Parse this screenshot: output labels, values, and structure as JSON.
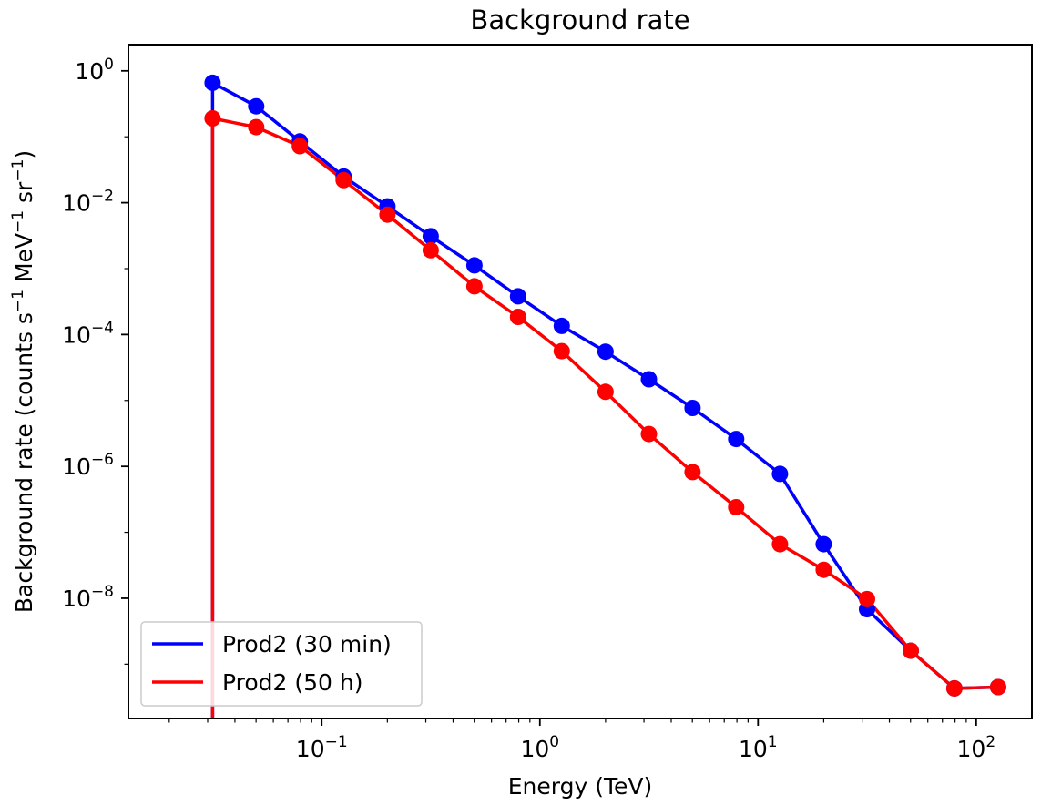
{
  "chart_data": {
    "type": "line",
    "title": "Background rate",
    "xlabel": "Energy (TeV)",
    "ylabel": {
      "text": "Background rate (counts s",
      "exp1": "−1",
      "mid": " MeV",
      "exp2": "−1",
      "mid2": " sr",
      "exp3": "−1",
      "end": ")"
    },
    "xscale": "log",
    "yscale": "log",
    "xlim": [
      0.013,
      180
    ],
    "ylim": [
      1.5e-10,
      2.5
    ],
    "x_ticks": [
      {
        "base": "10",
        "exp": "−1",
        "value": 0.1
      },
      {
        "base": "10",
        "exp": "0",
        "value": 1
      },
      {
        "base": "10",
        "exp": "1",
        "value": 10
      },
      {
        "base": "10",
        "exp": "2",
        "value": 100
      }
    ],
    "y_ticks": [
      {
        "base": "10",
        "exp": "0",
        "value": 1
      },
      {
        "base": "10",
        "exp": "−2",
        "value": 0.01
      },
      {
        "base": "10",
        "exp": "−4",
        "value": 0.0001
      },
      {
        "base": "10",
        "exp": "−6",
        "value": 1e-06
      },
      {
        "base": "10",
        "exp": "−8",
        "value": 1e-08
      }
    ],
    "grid": false,
    "legend_position": "lower-left",
    "drop_x": 0.0316,
    "series": [
      {
        "name": "Prod2 (30 min)",
        "color": "#0000ff",
        "x": [
          0.0316,
          0.0501,
          0.0794,
          0.126,
          0.2,
          0.316,
          0.501,
          0.794,
          1.26,
          2.0,
          3.16,
          5.01,
          7.94,
          12.6,
          20.0,
          31.6,
          50.1,
          79.4,
          126
        ],
        "y": [
          0.66,
          0.29,
          0.085,
          0.025,
          0.0088,
          0.0031,
          0.00112,
          0.00038,
          0.000135,
          5.5e-05,
          2.1e-05,
          7.7e-06,
          2.6e-06,
          7.7e-07,
          6.6e-08,
          6.8e-09,
          1.6e-09,
          4.3e-10,
          4.5e-10
        ]
      },
      {
        "name": "Prod2 (50 h)",
        "color": "#ff0000",
        "x": [
          0.0316,
          0.0501,
          0.0794,
          0.126,
          0.2,
          0.316,
          0.501,
          0.794,
          1.26,
          2.0,
          3.16,
          5.01,
          7.94,
          12.6,
          20.0,
          31.6,
          50.1,
          79.4,
          126
        ],
        "y": [
          0.19,
          0.14,
          0.072,
          0.022,
          0.0066,
          0.0019,
          0.00054,
          0.000185,
          5.6e-05,
          1.35e-05,
          3.1e-06,
          8.2e-07,
          2.4e-07,
          6.6e-08,
          2.7e-08,
          9.7e-09,
          1.6e-09,
          4.3e-10,
          4.5e-10
        ]
      }
    ]
  }
}
